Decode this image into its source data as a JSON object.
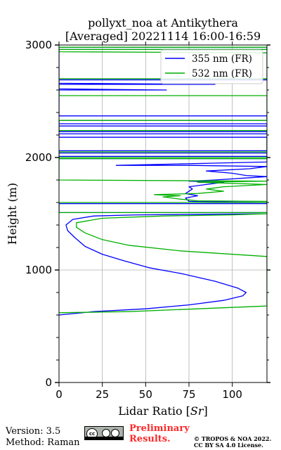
{
  "chart_data": {
    "type": "line",
    "title_lines": [
      "pollyxt_noa at Antikythera",
      "[Averaged] 20221114 16:00-16:59"
    ],
    "xlabel": "Lidar Ratio [",
    "xlabel_symbol": "Sr",
    "xlabel_suffix": "]",
    "ylabel": "Height (m)",
    "xlim": [
      0,
      120
    ],
    "ylim": [
      0,
      3000
    ],
    "xticks": [
      0,
      25,
      50,
      75,
      100
    ],
    "yticks": [
      0,
      1000,
      2000,
      3000
    ],
    "grid": true,
    "legend_position": "top-right",
    "series": [
      {
        "name": "355 nm (FR)",
        "color": "#0000ff",
        "points": [
          [
            0,
            600
          ],
          [
            20,
            630
          ],
          [
            50,
            655
          ],
          [
            75,
            690
          ],
          [
            95,
            730
          ],
          [
            106,
            770
          ],
          [
            108,
            800
          ],
          [
            103,
            840
          ],
          [
            90,
            900
          ],
          [
            70,
            970
          ],
          [
            52,
            1020
          ],
          [
            38,
            1080
          ],
          [
            25,
            1140
          ],
          [
            15,
            1210
          ],
          [
            9,
            1290
          ],
          [
            5,
            1350
          ],
          [
            4,
            1400
          ],
          [
            8,
            1450
          ],
          [
            20,
            1480
          ],
          [
            45,
            1490
          ],
          [
            80,
            1495
          ],
          [
            120,
            1500
          ],
          [
            120,
            1510
          ],
          [
            0,
            1510
          ],
          [
            0,
            1590
          ],
          [
            120,
            1590
          ],
          [
            120,
            1600
          ],
          [
            75,
            1610
          ],
          [
            73,
            1640
          ],
          [
            80,
            1660
          ],
          [
            73,
            1680
          ],
          [
            77,
            1720
          ],
          [
            75,
            1740
          ],
          [
            85,
            1760
          ],
          [
            95,
            1780
          ],
          [
            75,
            1790
          ],
          [
            90,
            1800
          ],
          [
            110,
            1820
          ],
          [
            120,
            1830
          ],
          [
            108,
            1840
          ],
          [
            100,
            1860
          ],
          [
            85,
            1880
          ],
          [
            110,
            1900
          ],
          [
            120,
            1920
          ],
          [
            75,
            1930
          ],
          [
            33,
            1930
          ],
          [
            90,
            1950
          ],
          [
            120,
            1960
          ],
          [
            120,
            1990
          ],
          [
            0,
            1990
          ],
          [
            0,
            2010
          ],
          [
            120,
            2010
          ],
          [
            120,
            2040
          ],
          [
            0,
            2040
          ],
          [
            0,
            2060
          ],
          [
            120,
            2060
          ],
          [
            120,
            2180
          ],
          [
            0,
            2180
          ],
          [
            0,
            2210
          ],
          [
            120,
            2210
          ],
          [
            120,
            2230
          ],
          [
            0,
            2230
          ],
          [
            0,
            2280
          ],
          [
            120,
            2280
          ],
          [
            120,
            2300
          ],
          [
            0,
            2300
          ],
          [
            0,
            2330
          ],
          [
            120,
            2330
          ],
          [
            120,
            2370
          ],
          [
            0,
            2370
          ],
          [
            0,
            2600
          ],
          [
            62,
            2600
          ],
          [
            0,
            2610
          ],
          [
            0,
            2650
          ],
          [
            90,
            2650
          ],
          [
            0,
            2660
          ],
          [
            0,
            2690
          ],
          [
            120,
            2690
          ],
          [
            120,
            2700
          ],
          [
            0,
            2700
          ],
          [
            0,
            2960
          ],
          [
            120,
            2960
          ],
          [
            120,
            2980
          ],
          [
            0,
            2980
          ]
        ]
      },
      {
        "name": "532 nm (FR)",
        "color": "#00b000",
        "points": [
          [
            0,
            620
          ],
          [
            40,
            630
          ],
          [
            120,
            680
          ],
          [
            120,
            1120
          ],
          [
            70,
            1170
          ],
          [
            40,
            1220
          ],
          [
            25,
            1270
          ],
          [
            15,
            1330
          ],
          [
            10,
            1380
          ],
          [
            10,
            1420
          ],
          [
            25,
            1460
          ],
          [
            60,
            1480
          ],
          [
            100,
            1490
          ],
          [
            120,
            1500
          ],
          [
            120,
            1510
          ],
          [
            0,
            1510
          ],
          [
            0,
            1600
          ],
          [
            120,
            1600
          ],
          [
            120,
            1610
          ],
          [
            80,
            1615
          ],
          [
            70,
            1630
          ],
          [
            60,
            1650
          ],
          [
            70,
            1660
          ],
          [
            55,
            1670
          ],
          [
            80,
            1680
          ],
          [
            95,
            1700
          ],
          [
            85,
            1720
          ],
          [
            95,
            1740
          ],
          [
            120,
            1760
          ],
          [
            80,
            1780
          ],
          [
            120,
            1790
          ],
          [
            0,
            1800
          ],
          [
            0,
            1990
          ],
          [
            120,
            1990
          ],
          [
            120,
            2000
          ],
          [
            0,
            2000
          ],
          [
            0,
            2050
          ],
          [
            120,
            2050
          ],
          [
            120,
            2240
          ],
          [
            0,
            2240
          ],
          [
            0,
            2330
          ],
          [
            120,
            2330
          ],
          [
            120,
            2550
          ],
          [
            0,
            2550
          ],
          [
            0,
            2700
          ],
          [
            120,
            2700
          ],
          [
            120,
            2930
          ],
          [
            0,
            2940
          ],
          [
            0,
            2960
          ],
          [
            120,
            2960
          ],
          [
            120,
            2980
          ],
          [
            0,
            2980
          ]
        ]
      }
    ]
  },
  "footer": {
    "version": "Version: 3.5",
    "method": "Method: Raman",
    "preliminary": "Preliminary Results.",
    "copyright_line1": "© TROPOS & NOA 2022.",
    "copyright_line2": "CC BY SA 4.0 License.",
    "license_badge_text": "cc"
  }
}
